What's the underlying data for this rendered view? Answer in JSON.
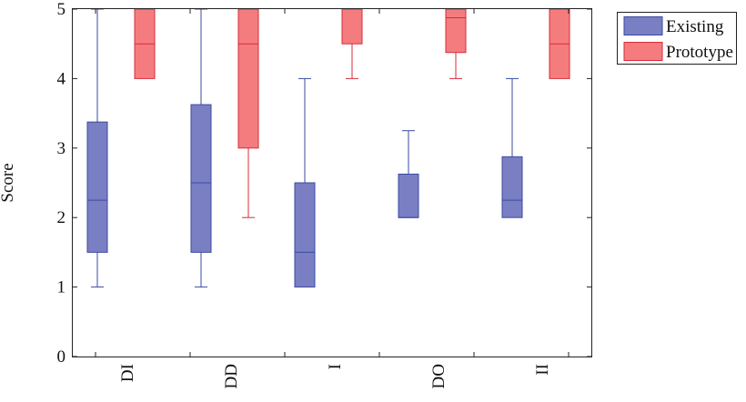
{
  "chart_data": {
    "type": "box",
    "ylabel": "Score",
    "xlabel": "",
    "ylim": [
      0,
      5
    ],
    "yticks": [
      0,
      1,
      2,
      3,
      4,
      5
    ],
    "categories": [
      "DI",
      "DD",
      "I",
      "DO",
      "II"
    ],
    "grid": false,
    "legend_position": "outside-right-top",
    "series": [
      {
        "name": "Existing",
        "fill": "#7a7fc4",
        "stroke": "#3a4aa0",
        "boxes": [
          {
            "category": "DI",
            "whisker_low": 1,
            "q1": 1.5,
            "median": 2.25,
            "q3": 3.375,
            "whisker_high": 5
          },
          {
            "category": "DD",
            "whisker_low": 1,
            "q1": 1.5,
            "median": 2.5,
            "q3": 3.625,
            "whisker_high": 5
          },
          {
            "category": "I",
            "whisker_low": 1,
            "q1": 1,
            "median": 1.5,
            "q3": 2.5,
            "whisker_high": 4
          },
          {
            "category": "DO",
            "whisker_low": 2,
            "q1": 2,
            "median": 2,
            "q3": 2.625,
            "whisker_high": 3.25
          },
          {
            "category": "II",
            "whisker_low": 2,
            "q1": 2,
            "median": 2.25,
            "q3": 2.875,
            "whisker_high": 4
          }
        ]
      },
      {
        "name": "Prototype",
        "fill": "#f47c7f",
        "stroke": "#d62d3a",
        "boxes": [
          {
            "category": "DI",
            "whisker_low": 4,
            "q1": 4,
            "median": 4.5,
            "q3": 5,
            "whisker_high": 5
          },
          {
            "category": "DD",
            "whisker_low": 2,
            "q1": 3,
            "median": 4.5,
            "q3": 5,
            "whisker_high": 5
          },
          {
            "category": "I",
            "whisker_low": 4,
            "q1": 4.5,
            "median": 5,
            "q3": 5,
            "whisker_high": 5
          },
          {
            "category": "DO",
            "whisker_low": 4,
            "q1": 4.375,
            "median": 4.875,
            "q3": 5,
            "whisker_high": 5
          },
          {
            "category": "II",
            "whisker_low": 4,
            "q1": 4,
            "median": 4.5,
            "q3": 5,
            "whisker_high": 5
          }
        ]
      }
    ]
  }
}
